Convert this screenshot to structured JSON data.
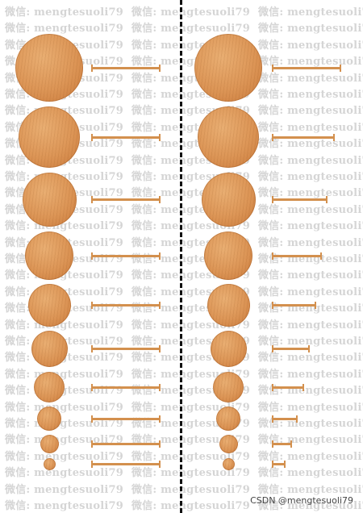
{
  "watermark": {
    "text": "微信: mengtesuoli79",
    "repeat_per_row": 3
  },
  "credit": "CSDN @mengtesuoli79",
  "columns": [
    {
      "name": "left",
      "disk_color": "#dc9556",
      "items": [
        {
          "disk_diameter": 84,
          "bar_length": 84
        },
        {
          "disk_diameter": 76,
          "bar_length": 84
        },
        {
          "disk_diameter": 67,
          "bar_length": 84
        },
        {
          "disk_diameter": 60,
          "bar_length": 84
        },
        {
          "disk_diameter": 53,
          "bar_length": 84
        },
        {
          "disk_diameter": 45,
          "bar_length": 84
        },
        {
          "disk_diameter": 38,
          "bar_length": 84
        },
        {
          "disk_diameter": 30,
          "bar_length": 84
        },
        {
          "disk_diameter": 23,
          "bar_length": 84
        },
        {
          "disk_diameter": 15,
          "bar_length": 84
        }
      ]
    },
    {
      "name": "right",
      "disk_color": "#dc9556",
      "items": [
        {
          "disk_diameter": 84,
          "bar_length": 84
        },
        {
          "disk_diameter": 76,
          "bar_length": 76
        },
        {
          "disk_diameter": 67,
          "bar_length": 67
        },
        {
          "disk_diameter": 60,
          "bar_length": 60
        },
        {
          "disk_diameter": 53,
          "bar_length": 53
        },
        {
          "disk_diameter": 45,
          "bar_length": 45
        },
        {
          "disk_diameter": 38,
          "bar_length": 38
        },
        {
          "disk_diameter": 30,
          "bar_length": 30
        },
        {
          "disk_diameter": 23,
          "bar_length": 23
        },
        {
          "disk_diameter": 15,
          "bar_length": 15
        }
      ]
    }
  ]
}
